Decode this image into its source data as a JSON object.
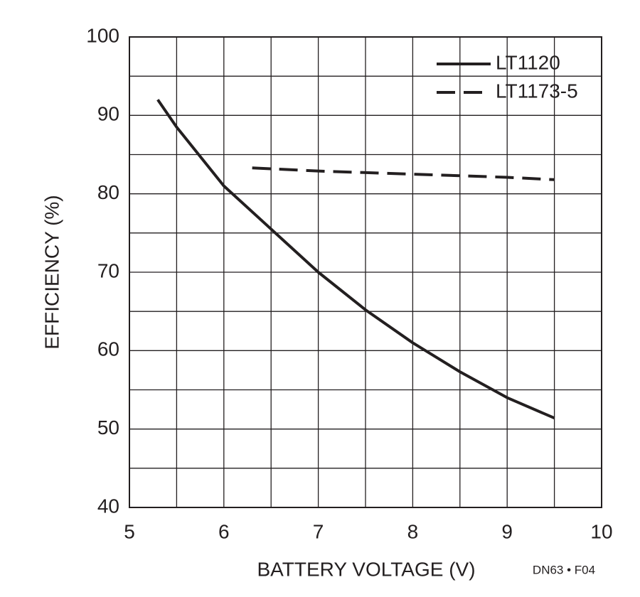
{
  "chart_data": {
    "type": "line",
    "xlabel": "BATTERY VOLTAGE (V)",
    "ylabel": "EFFICIENCY (%)",
    "footnote": "DN63 • F04",
    "series": [
      {
        "name": "LT1120",
        "color": "#231f20",
        "style": "solid",
        "x": [
          5.3,
          5.5,
          6,
          6.5,
          7,
          7.5,
          8,
          8.5,
          9,
          9.5
        ],
        "values": [
          92,
          88.5,
          81,
          75.5,
          70,
          65.2,
          61,
          57.3,
          54,
          51.4
        ]
      },
      {
        "name": "LT1173-5",
        "color": "#231f20",
        "style": "dashed",
        "x": [
          6.3,
          7,
          8,
          9,
          9.5
        ],
        "values": [
          83.3,
          82.9,
          82.5,
          82.1,
          81.8
        ]
      }
    ],
    "xlim": [
      5,
      10
    ],
    "xticks": [
      5,
      6,
      7,
      8,
      9,
      10
    ],
    "ylim": [
      40,
      100
    ],
    "yticks": [
      40,
      50,
      60,
      70,
      80,
      90,
      100
    ],
    "grid": true,
    "legend": "top-right"
  }
}
